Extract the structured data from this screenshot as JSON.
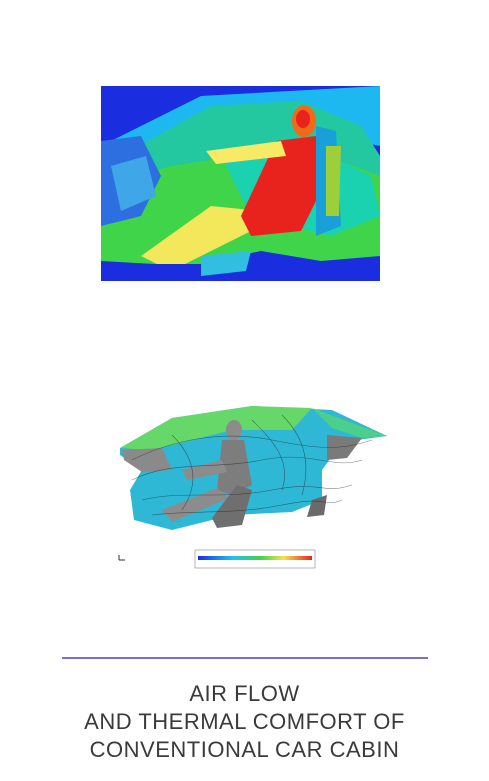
{
  "figures": {
    "thermal": {
      "description_icon": "car-cabin-thermal-map-icon"
    },
    "airflow": {
      "description_icon": "car-cabin-airflow-streamlines-icon"
    }
  },
  "caption": {
    "line1": "AIR FLOW",
    "line2": "AND THERMAL COMFORT OF",
    "line3": "CONVENTIONAL CAR CABIN"
  },
  "colors": {
    "divider": "#7b6ad8",
    "caption_text": "#3a3a3a"
  }
}
